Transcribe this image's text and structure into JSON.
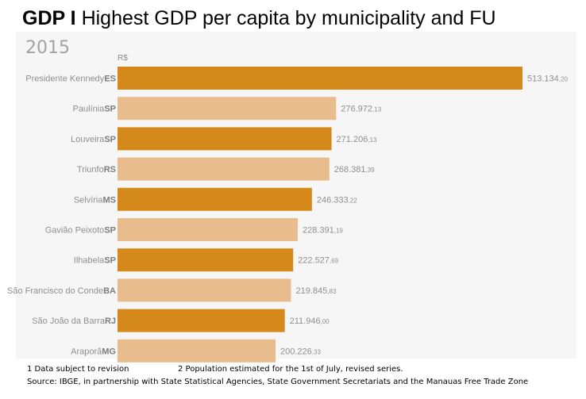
{
  "title_bold": "GDP I",
  "title_rest": " Highest GDP per capita by municipality and FU",
  "year": "2015",
  "unit": "R$",
  "notes": {
    "note1": "1 Data subject to revision",
    "note2": "2 Population estimated for the 1st of July, revised series.",
    "source": "Source: IBGE, in partnership with State Statistical Agencies, State Government Secretariats and the Manauas Free Trade Zone"
  },
  "colors": {
    "dark_bar": "#d4891a",
    "light_bar": "#e8bc8c",
    "panel": "#f6f6f6"
  },
  "chart_data": {
    "type": "bar",
    "orientation": "horizontal",
    "categories": [
      {
        "municipality": "Presidente Kennedy",
        "fu": "ES"
      },
      {
        "municipality": "Paulínia",
        "fu": "SP"
      },
      {
        "municipality": "Louveira",
        "fu": "SP"
      },
      {
        "municipality": "Triunfo",
        "fu": "RS"
      },
      {
        "municipality": "Selvíria",
        "fu": "MS"
      },
      {
        "municipality": "Gavião Peixoto",
        "fu": "SP"
      },
      {
        "municipality": "Ilhabela",
        "fu": "SP"
      },
      {
        "municipality": "São Francisco do Conde",
        "fu": "BA"
      },
      {
        "municipality": "São João da Barra",
        "fu": "RJ"
      },
      {
        "municipality": "Araporã",
        "fu": "MG"
      }
    ],
    "values": [
      513134.2,
      276972.13,
      271206.13,
      268381.39,
      246333.22,
      228391.19,
      222527.69,
      219845.83,
      211946.0,
      200226.33
    ],
    "labels": [
      {
        "int": "513.134",
        "dec": ",20"
      },
      {
        "int": "276.972",
        "dec": ",13"
      },
      {
        "int": "271.206",
        "dec": ",13"
      },
      {
        "int": "268.381",
        "dec": ",39"
      },
      {
        "int": "246.333",
        "dec": ",22"
      },
      {
        "int": "228.391",
        "dec": ",19"
      },
      {
        "int": "222.527",
        "dec": ",69"
      },
      {
        "int": "219.845",
        "dec": ",83"
      },
      {
        "int": "211.946",
        "dec": ",00"
      },
      {
        "int": "200.226",
        "dec": ",33"
      }
    ],
    "ylabel": "R$",
    "grid": false,
    "legend": false
  }
}
